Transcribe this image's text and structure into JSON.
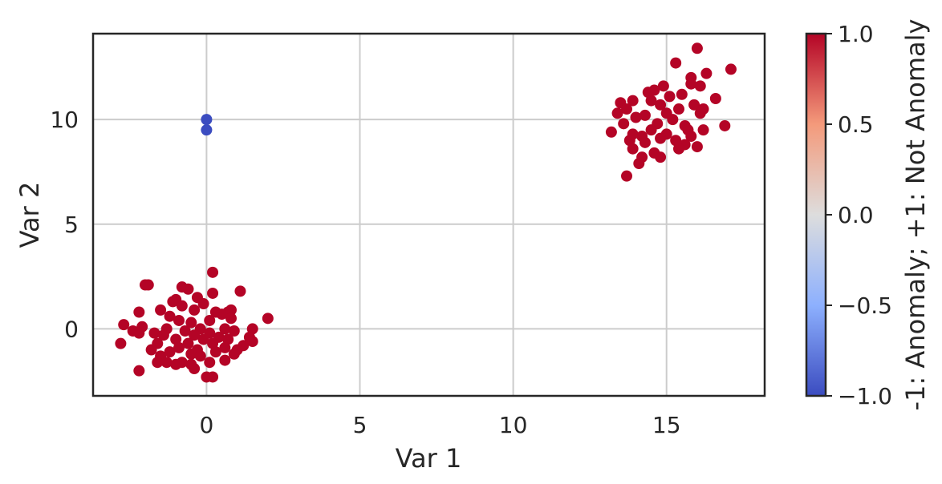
{
  "chart_data": {
    "type": "scatter",
    "title": "",
    "xlabel": "Var 1",
    "ylabel": "Var 2",
    "xlim": [
      -3.7,
      18.2
    ],
    "ylim": [
      -3.2,
      14.1
    ],
    "xticks": [
      0,
      5,
      10,
      15
    ],
    "xtick_labels": [
      "0",
      "5",
      "10",
      "15"
    ],
    "yticks": [
      0,
      5,
      10
    ],
    "ytick_labels": [
      "0",
      "5",
      "10"
    ],
    "grid": true,
    "colorbar": {
      "label": "-1: Anomaly; +1: Not Anomaly",
      "range": [
        -1.0,
        1.0
      ],
      "ticks": [
        -1.0,
        -0.5,
        0.0,
        0.5,
        1.0
      ],
      "tick_labels": [
        "−1.0",
        "−0.5",
        "0.0",
        "0.5",
        "1.0"
      ],
      "colormap": "coolwarm",
      "colors": [
        "#3b4cc0",
        "#8db0fe",
        "#dddddd",
        "#f49a7b",
        "#b40426"
      ]
    },
    "point_colors": {
      "anomaly": "#3b4cc0",
      "normal": "#b40426"
    },
    "series": [
      {
        "status": -1,
        "points": [
          [
            0.0,
            10.0
          ],
          [
            0.0,
            9.5
          ]
        ]
      },
      {
        "status": 1,
        "points": [
          [
            0.2,
            2.7
          ],
          [
            -1.9,
            2.1
          ],
          [
            -2.0,
            2.1
          ],
          [
            1.1,
            1.8
          ],
          [
            -0.8,
            2.0
          ],
          [
            0.2,
            1.7
          ],
          [
            -0.6,
            1.9
          ],
          [
            -1.0,
            1.4
          ],
          [
            -1.1,
            1.3
          ],
          [
            -0.3,
            1.5
          ],
          [
            -1.5,
            0.9
          ],
          [
            -0.1,
            1.2
          ],
          [
            -0.8,
            1.1
          ],
          [
            0.8,
            0.9
          ],
          [
            0.7,
            0.8
          ],
          [
            -0.4,
            0.9
          ],
          [
            -2.2,
            0.8
          ],
          [
            0.3,
            0.8
          ],
          [
            -1.2,
            0.6
          ],
          [
            0.5,
            0.7
          ],
          [
            2.0,
            0.5
          ],
          [
            -0.9,
            0.4
          ],
          [
            0.8,
            0.5
          ],
          [
            0.1,
            0.4
          ],
          [
            -0.5,
            0.3
          ],
          [
            -2.7,
            0.2
          ],
          [
            -2.1,
            0.1
          ],
          [
            1.5,
            0.0
          ],
          [
            -1.3,
            0.0
          ],
          [
            -0.2,
            0.0
          ],
          [
            0.6,
            0.0
          ],
          [
            -2.4,
            -0.1
          ],
          [
            -0.7,
            -0.1
          ],
          [
            0.9,
            -0.1
          ],
          [
            -1.7,
            -0.2
          ],
          [
            0.1,
            -0.2
          ],
          [
            -2.2,
            -0.2
          ],
          [
            -0.4,
            -0.3
          ],
          [
            1.4,
            -0.4
          ],
          [
            -1.4,
            -0.3
          ],
          [
            0.4,
            -0.4
          ],
          [
            -1.0,
            -0.5
          ],
          [
            0.7,
            -0.5
          ],
          [
            -0.1,
            -0.5
          ],
          [
            1.5,
            -0.6
          ],
          [
            -1.6,
            -0.7
          ],
          [
            -0.6,
            -0.7
          ],
          [
            0.2,
            -0.7
          ],
          [
            1.2,
            -0.8
          ],
          [
            -2.8,
            -0.7
          ],
          [
            -0.9,
            -0.9
          ],
          [
            0.6,
            -0.9
          ],
          [
            -1.8,
            -1.0
          ],
          [
            -0.3,
            -1.0
          ],
          [
            1.0,
            -1.0
          ],
          [
            -1.2,
            -1.1
          ],
          [
            0.3,
            -1.1
          ],
          [
            -0.5,
            -1.2
          ],
          [
            0.9,
            -1.2
          ],
          [
            -1.5,
            -1.3
          ],
          [
            -0.2,
            -1.3
          ],
          [
            0.6,
            -1.5
          ],
          [
            -1.3,
            -1.6
          ],
          [
            -0.8,
            -1.6
          ],
          [
            -1.6,
            -1.6
          ],
          [
            0.1,
            -1.6
          ],
          [
            -0.5,
            -1.7
          ],
          [
            -1.0,
            -1.7
          ],
          [
            -2.2,
            -2.0
          ],
          [
            0.0,
            -2.3
          ],
          [
            0.2,
            -2.3
          ],
          [
            -0.4,
            -1.9
          ]
        ]
      },
      {
        "status": 1,
        "points": [
          [
            16.0,
            13.4
          ],
          [
            17.1,
            12.4
          ],
          [
            15.3,
            12.7
          ],
          [
            16.3,
            12.2
          ],
          [
            15.8,
            12.0
          ],
          [
            15.8,
            11.7
          ],
          [
            16.1,
            11.6
          ],
          [
            14.9,
            11.6
          ],
          [
            14.4,
            11.3
          ],
          [
            15.5,
            11.2
          ],
          [
            14.6,
            11.4
          ],
          [
            15.1,
            11.1
          ],
          [
            16.6,
            11.0
          ],
          [
            13.9,
            10.9
          ],
          [
            14.5,
            10.9
          ],
          [
            13.5,
            10.8
          ],
          [
            15.9,
            10.7
          ],
          [
            16.2,
            10.5
          ],
          [
            14.8,
            10.7
          ],
          [
            15.4,
            10.5
          ],
          [
            13.7,
            10.5
          ],
          [
            16.1,
            10.3
          ],
          [
            15.0,
            10.3
          ],
          [
            13.4,
            10.3
          ],
          [
            14.3,
            10.2
          ],
          [
            14.0,
            10.1
          ],
          [
            15.2,
            10.0
          ],
          [
            13.6,
            9.8
          ],
          [
            14.7,
            9.8
          ],
          [
            15.6,
            9.7
          ],
          [
            16.9,
            9.7
          ],
          [
            16.2,
            9.5
          ],
          [
            15.7,
            9.5
          ],
          [
            14.5,
            9.5
          ],
          [
            13.2,
            9.4
          ],
          [
            15.0,
            9.3
          ],
          [
            13.9,
            9.3
          ],
          [
            14.2,
            9.2
          ],
          [
            15.8,
            9.2
          ],
          [
            14.8,
            9.1
          ],
          [
            15.3,
            9.0
          ],
          [
            13.8,
            9.0
          ],
          [
            14.3,
            8.9
          ],
          [
            15.6,
            8.8
          ],
          [
            16.0,
            8.7
          ],
          [
            13.9,
            8.6
          ],
          [
            15.4,
            8.6
          ],
          [
            14.6,
            8.4
          ],
          [
            14.2,
            8.2
          ],
          [
            14.8,
            8.2
          ],
          [
            14.1,
            7.9
          ],
          [
            13.7,
            7.3
          ]
        ]
      }
    ]
  }
}
